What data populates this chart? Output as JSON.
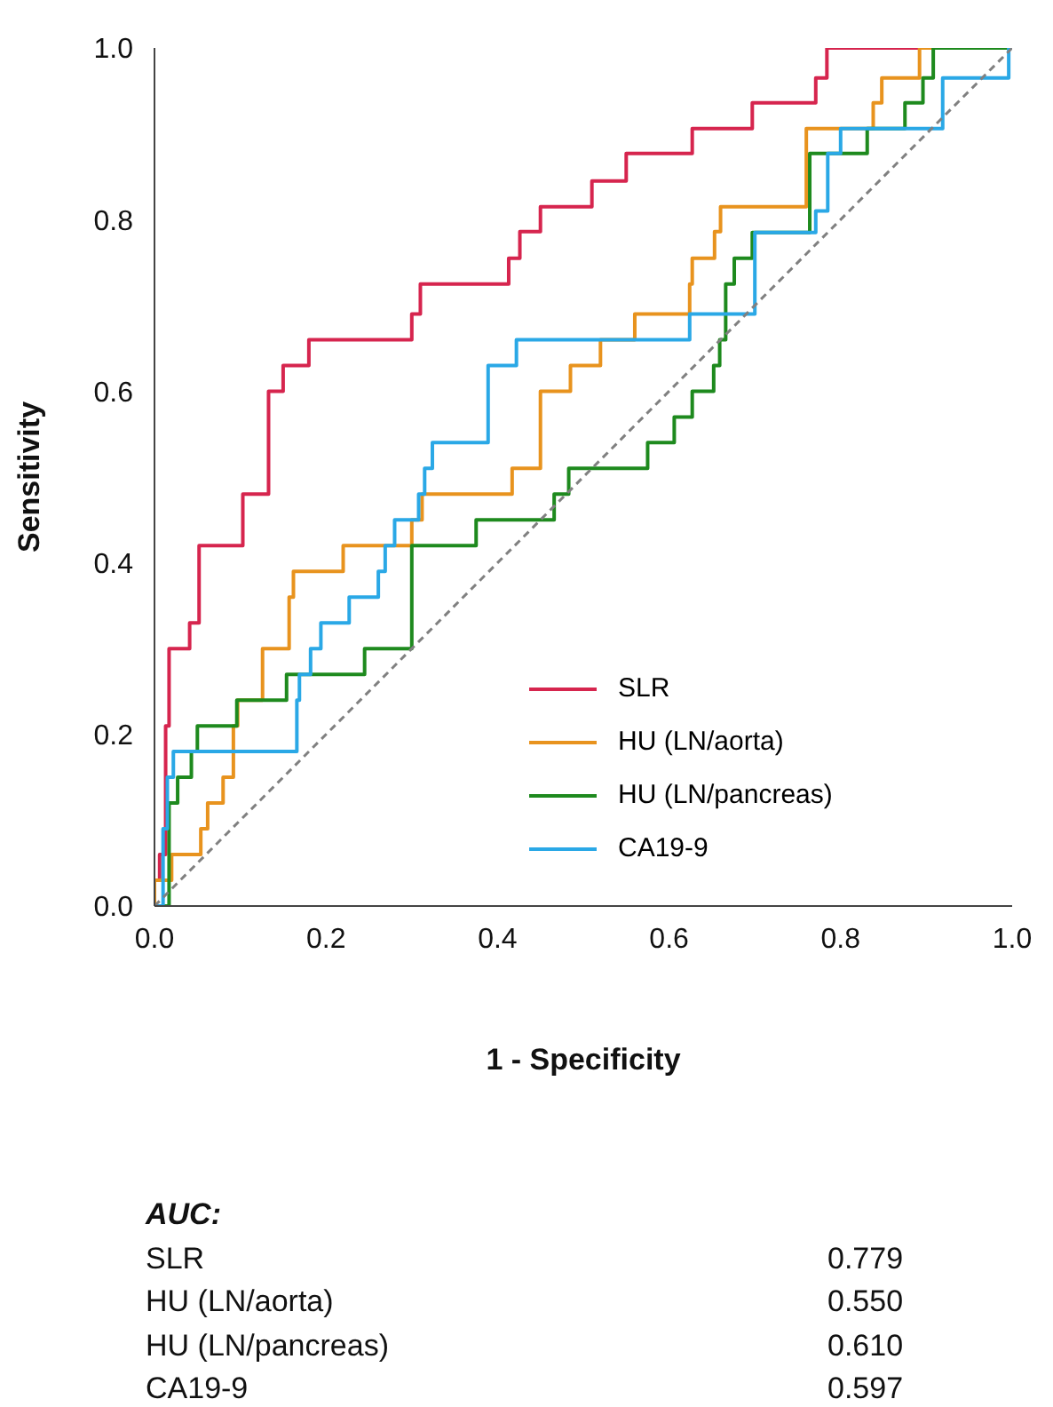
{
  "chart_data": {
    "type": "step",
    "xlabel": "1 - Specificity",
    "ylabel": "Sensitivity",
    "xlim": [
      0,
      1
    ],
    "ylim": [
      0,
      1
    ],
    "xticks": [
      {
        "value": 0,
        "label": "0.0"
      },
      {
        "value": 0.2,
        "label": "0.2"
      },
      {
        "value": 0.4,
        "label": "0.4"
      },
      {
        "value": 0.6,
        "label": "0.6"
      },
      {
        "value": 0.8,
        "label": "0.8"
      },
      {
        "value": 1,
        "label": "1.0"
      }
    ],
    "yticks": [
      {
        "value": 0,
        "label": "0.0"
      },
      {
        "value": 0.2,
        "label": "0.2"
      },
      {
        "value": 0.4,
        "label": "0.4"
      },
      {
        "value": 0.6,
        "label": "0.6"
      },
      {
        "value": 0.8,
        "label": "0.8"
      },
      {
        "value": 1,
        "label": "1.0"
      }
    ],
    "legend": "bottom right",
    "series": [
      {
        "name": "SLR",
        "color": "#d6254e",
        "x": [
          0,
          0,
          0.006,
          0.013,
          0.017,
          0.041,
          0.052,
          0.103,
          0.133,
          0.15,
          0.18,
          0.3,
          0.31,
          0.413,
          0.426,
          0.45,
          0.51,
          0.55,
          0.627,
          0.697,
          0.771,
          0.784,
          1
        ],
        "values": [
          0,
          0.03,
          0.06,
          0.21,
          0.3,
          0.33,
          0.42,
          0.48,
          0.6,
          0.63,
          0.66,
          0.69,
          0.725,
          0.755,
          0.786,
          0.815,
          0.845,
          0.877,
          0.906,
          0.936,
          0.965,
          1.0,
          1.0
        ]
      },
      {
        "name": "HU (LN/aorta)",
        "color": "#e8931e",
        "x": [
          0,
          0,
          0.02,
          0.054,
          0.062,
          0.08,
          0.092,
          0.097,
          0.126,
          0.157,
          0.162,
          0.22,
          0.3,
          0.312,
          0.417,
          0.45,
          0.485,
          0.52,
          0.56,
          0.624,
          0.627,
          0.653,
          0.66,
          0.76,
          0.838,
          0.848,
          0.892,
          1
        ],
        "values": [
          0,
          0.03,
          0.06,
          0.09,
          0.12,
          0.15,
          0.21,
          0.24,
          0.3,
          0.36,
          0.39,
          0.42,
          0.45,
          0.48,
          0.51,
          0.6,
          0.63,
          0.66,
          0.69,
          0.725,
          0.755,
          0.786,
          0.815,
          0.906,
          0.936,
          0.965,
          1.0,
          1.0
        ]
      },
      {
        "name": "HU (LN/pancreas)",
        "color": "#1e8a1e",
        "x": [
          0,
          0.017,
          0.027,
          0.043,
          0.05,
          0.096,
          0.154,
          0.245,
          0.3,
          0.375,
          0.466,
          0.483,
          0.575,
          0.606,
          0.627,
          0.652,
          0.659,
          0.666,
          0.676,
          0.697,
          0.764,
          0.831,
          0.875,
          0.896,
          0.908,
          1
        ],
        "values": [
          0,
          0.12,
          0.15,
          0.18,
          0.21,
          0.24,
          0.27,
          0.3,
          0.42,
          0.45,
          0.48,
          0.51,
          0.54,
          0.57,
          0.6,
          0.63,
          0.66,
          0.725,
          0.755,
          0.785,
          0.877,
          0.906,
          0.936,
          0.965,
          1.0,
          1.0
        ]
      },
      {
        "name": "CA19-9",
        "color": "#2aa8e6",
        "x": [
          0,
          0.01,
          0.015,
          0.022,
          0.166,
          0.169,
          0.182,
          0.194,
          0.227,
          0.261,
          0.269,
          0.28,
          0.308,
          0.315,
          0.324,
          0.389,
          0.422,
          0.624,
          0.7,
          0.771,
          0.785,
          0.8,
          0.919,
          0.996,
          1
        ],
        "values": [
          0,
          0.09,
          0.15,
          0.18,
          0.24,
          0.27,
          0.3,
          0.33,
          0.36,
          0.39,
          0.42,
          0.45,
          0.48,
          0.51,
          0.54,
          0.63,
          0.66,
          0.69,
          0.785,
          0.81,
          0.877,
          0.906,
          0.965,
          1.0,
          1.0
        ]
      },
      {
        "type": "line",
        "color": "#808080",
        "line_style": "dashed",
        "x": [
          0,
          1
        ],
        "values": [
          0,
          1
        ]
      }
    ],
    "annotations": [
      "AUC:",
      "SLR",
      "0.779",
      "HU (LN/aorta)",
      "0.550",
      "HU (LN/pancreas)",
      "0.610",
      "CA19-9",
      "0.597"
    ]
  }
}
